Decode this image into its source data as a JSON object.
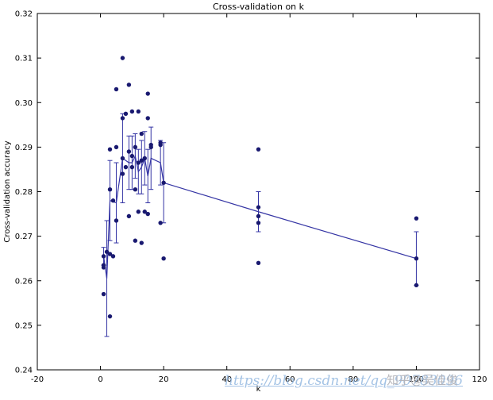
{
  "figure": {
    "title": "Cross-validation on k",
    "xlabel": "k",
    "ylabel": "Cross-validation accuracy"
  },
  "watermarks": {
    "csdn_url": "https://blog.csdn.net/qq_90783096",
    "zhihu": "知乎@吴佳俊"
  },
  "chart_data": {
    "type": "scatter",
    "title": "Cross-validation on k",
    "xlabel": "k",
    "ylabel": "Cross-validation accuracy",
    "xlim": [
      -20,
      120
    ],
    "ylim": [
      0.24,
      0.32
    ],
    "xticks": [
      -20,
      0,
      20,
      40,
      60,
      80,
      100,
      120
    ],
    "yticks": [
      0.24,
      0.25,
      0.26,
      0.27,
      0.28,
      0.29,
      0.3,
      0.31,
      0.32
    ],
    "grid": false,
    "legend": "none",
    "colors": {
      "marker": "#191970",
      "line": "#3434a4",
      "errorbar": "#3434a4",
      "axis": "#000000"
    },
    "scatter_points": [
      [
        1,
        0.2655
      ],
      [
        1,
        0.2635
      ],
      [
        1,
        0.263
      ],
      [
        1,
        0.257
      ],
      [
        2,
        0.2665
      ],
      [
        3,
        0.2895
      ],
      [
        3,
        0.2805
      ],
      [
        3,
        0.266
      ],
      [
        3,
        0.252
      ],
      [
        4,
        0.278
      ],
      [
        4,
        0.2655
      ],
      [
        5,
        0.303
      ],
      [
        5,
        0.29
      ],
      [
        5,
        0.2735
      ],
      [
        7,
        0.31
      ],
      [
        7,
        0.2965
      ],
      [
        7,
        0.2875
      ],
      [
        7,
        0.284
      ],
      [
        8,
        0.2975
      ],
      [
        8,
        0.2855
      ],
      [
        9,
        0.304
      ],
      [
        9,
        0.289
      ],
      [
        9,
        0.2745
      ],
      [
        10,
        0.298
      ],
      [
        10,
        0.288
      ],
      [
        10,
        0.2855
      ],
      [
        11,
        0.29
      ],
      [
        11,
        0.2805
      ],
      [
        11,
        0.269
      ],
      [
        12,
        0.298
      ],
      [
        12,
        0.2865
      ],
      [
        12,
        0.2755
      ],
      [
        13,
        0.293
      ],
      [
        13,
        0.287
      ],
      [
        13,
        0.2685
      ],
      [
        14,
        0.2875
      ],
      [
        14,
        0.2755
      ],
      [
        15,
        0.302
      ],
      [
        15,
        0.2965
      ],
      [
        15,
        0.275
      ],
      [
        16,
        0.29
      ],
      [
        16,
        0.2905
      ],
      [
        19,
        0.291
      ],
      [
        19,
        0.2905
      ],
      [
        19,
        0.273
      ],
      [
        20,
        0.282
      ],
      [
        20,
        0.265
      ],
      [
        50,
        0.2895
      ],
      [
        50,
        0.2765
      ],
      [
        50,
        0.2745
      ],
      [
        50,
        0.273
      ],
      [
        50,
        0.264
      ],
      [
        100,
        0.274
      ],
      [
        100,
        0.265
      ],
      [
        100,
        0.259
      ]
    ],
    "mean_line": {
      "x": [
        1,
        2,
        3,
        5,
        7,
        9,
        10,
        11,
        12,
        13,
        14,
        15,
        16,
        19,
        20,
        50,
        100
      ],
      "y": [
        0.2655,
        0.2605,
        0.278,
        0.2775,
        0.2875,
        0.2865,
        0.2865,
        0.288,
        0.2845,
        0.2855,
        0.2875,
        0.2835,
        0.2875,
        0.2865,
        0.282,
        0.2755,
        0.265
      ],
      "yerr": [
        0.002,
        0.013,
        0.009,
        0.009,
        0.01,
        0.006,
        0.006,
        0.005,
        0.005,
        0.006,
        0.006,
        0.006,
        0.007,
        0.005,
        0.009,
        0.0045,
        0.006
      ]
    }
  }
}
